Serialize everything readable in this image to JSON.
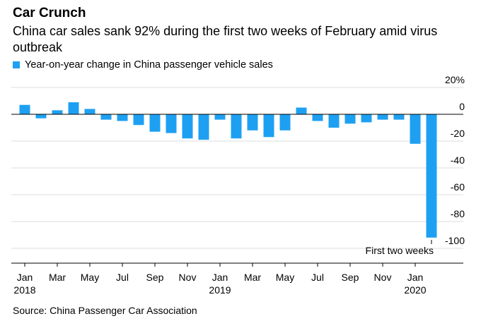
{
  "header": {
    "title": "Car Crunch",
    "subtitle": "China car sales sank 92% during the first two weeks of February amid virus outbreak"
  },
  "legend": {
    "label": "Year-on-year change in China passenger vehicle sales",
    "color": "#1ea0f2"
  },
  "source": "Source: China Passenger Car Association",
  "chart_data": {
    "type": "bar",
    "title": "Car Crunch",
    "subtitle": "China car sales sank 92% during the first two weeks of February amid virus outbreak",
    "series_name": "Year-on-year change in China passenger vehicle sales",
    "color": "#1ea0f2",
    "categories": [
      "Jan 2018",
      "Feb 2018",
      "Mar 2018",
      "Apr 2018",
      "May 2018",
      "Jun 2018",
      "Jul 2018",
      "Aug 2018",
      "Sep 2018",
      "Oct 2018",
      "Nov 2018",
      "Dec 2018",
      "Jan 2019",
      "Feb 2019",
      "Mar 2019",
      "Apr 2019",
      "May 2019",
      "Jun 2019",
      "Jul 2019",
      "Aug 2019",
      "Sep 2019",
      "Oct 2019",
      "Nov 2019",
      "Dec 2019",
      "Jan 2020",
      "First two weeks Feb 2020"
    ],
    "values": [
      7,
      -3,
      3,
      9,
      4,
      -4,
      -5,
      -8,
      -13,
      -14,
      -18,
      -19,
      -4,
      -18,
      -12,
      -17,
      -12,
      5,
      -5,
      -10,
      -7,
      -6,
      -4,
      -4,
      -22,
      -92
    ],
    "yticks": [
      20,
      0,
      -20,
      -40,
      -60,
      -80,
      -100
    ],
    "ytick_labels": [
      "20%",
      "0",
      "-20",
      "-40",
      "-60",
      "-80",
      "-100"
    ],
    "ylim": [
      -105,
      25
    ],
    "xticks": [
      {
        "index": 0,
        "label": "Jan",
        "year": "2018"
      },
      {
        "index": 2,
        "label": "Mar"
      },
      {
        "index": 4,
        "label": "May"
      },
      {
        "index": 6,
        "label": "Jul"
      },
      {
        "index": 8,
        "label": "Sep"
      },
      {
        "index": 10,
        "label": "Nov"
      },
      {
        "index": 12,
        "label": "Jan",
        "year": "2019"
      },
      {
        "index": 14,
        "label": "Mar"
      },
      {
        "index": 16,
        "label": "May"
      },
      {
        "index": 18,
        "label": "Jul"
      },
      {
        "index": 20,
        "label": "Sep"
      },
      {
        "index": 22,
        "label": "Nov"
      },
      {
        "index": 24,
        "label": "Jan",
        "year": "2020"
      }
    ],
    "annotation": {
      "index": 25,
      "text": "First two weeks"
    },
    "grid": true
  }
}
